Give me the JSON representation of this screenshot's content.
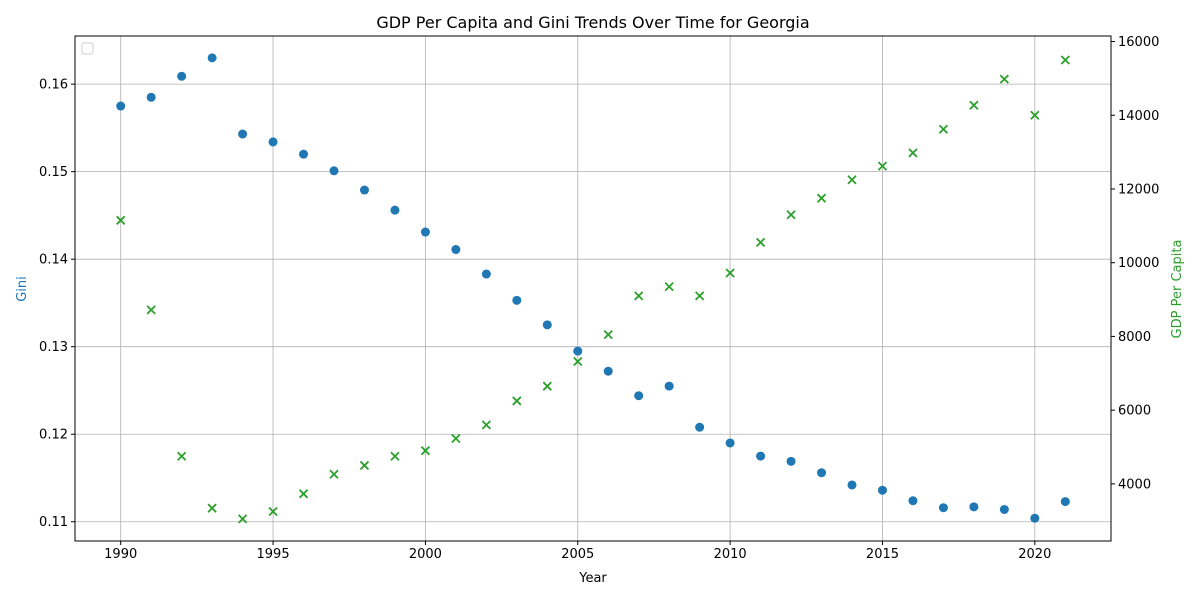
{
  "chart_data": {
    "type": "scatter",
    "title": "GDP Per Capita and Gini Trends Over Time for Georgia",
    "xlabel": "Year",
    "ylabel_left": "Gini",
    "ylabel_right": "GDP Per Capita",
    "xlim": [
      1988.5,
      2022.5
    ],
    "ylim_left": [
      0.1078,
      0.1655
    ],
    "ylim_right": [
      2450,
      16150
    ],
    "x_ticks": [
      1990,
      1995,
      2000,
      2005,
      2010,
      2015,
      2020
    ],
    "y_left_ticks": [
      0.11,
      0.12,
      0.13,
      0.14,
      0.15,
      0.16
    ],
    "y_right_ticks": [
      4000,
      6000,
      8000,
      10000,
      12000,
      14000,
      16000
    ],
    "grid": true,
    "legend": "top-left (empty)",
    "colors": {
      "gini": "#1f77b4",
      "gdp": "#2ca02c"
    },
    "series": [
      {
        "axis": "left",
        "marker": "circle",
        "x": [
          1990,
          1991,
          1992,
          1993,
          1994,
          1995,
          1996,
          1997,
          1998,
          1999,
          2000,
          2001,
          2002,
          2003,
          2004,
          2005,
          2006,
          2007,
          2008,
          2009,
          2010,
          2011,
          2012,
          2013,
          2014,
          2015,
          2016,
          2017,
          2018,
          2019,
          2020,
          2021
        ],
        "values": [
          0.1575,
          0.1585,
          0.1609,
          0.163,
          0.1543,
          0.1534,
          0.152,
          0.1501,
          0.1479,
          0.1456,
          0.1431,
          0.1411,
          0.1383,
          0.1353,
          0.1325,
          0.1295,
          0.1272,
          0.1244,
          0.1255,
          0.1208,
          0.119,
          0.1175,
          0.1169,
          0.1156,
          0.1142,
          0.1136,
          0.1124,
          0.1116,
          0.1117,
          0.1114,
          0.1104,
          0.1123
        ]
      },
      {
        "axis": "right",
        "marker": "x",
        "x": [
          1990,
          1991,
          1992,
          1993,
          1994,
          1995,
          1996,
          1997,
          1998,
          1999,
          2000,
          2001,
          2002,
          2003,
          2004,
          2005,
          2006,
          2007,
          2008,
          2009,
          2010,
          2011,
          2012,
          2013,
          2014,
          2015,
          2016,
          2017,
          2018,
          2019,
          2020,
          2021
        ],
        "values": [
          11150,
          8720,
          4750,
          3340,
          3050,
          3250,
          3730,
          4260,
          4500,
          4750,
          4900,
          5230,
          5600,
          6250,
          6650,
          7320,
          8050,
          9100,
          9350,
          9100,
          9720,
          10550,
          11300,
          11750,
          12250,
          12620,
          12980,
          13620,
          14270,
          14980,
          14000,
          15500
        ]
      }
    ]
  }
}
